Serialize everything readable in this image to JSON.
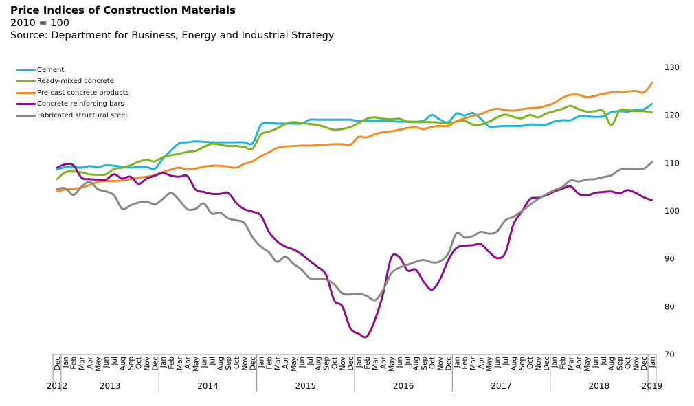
{
  "header": {
    "title": "Price Indices of Construction Materials",
    "subtitle": "2010 = 100",
    "source": "Source: Department for Business, Energy and Industrial Strategy"
  },
  "chart_data": {
    "type": "line",
    "title": "Price Indices of Construction Materials",
    "subtitle": "2010 = 100",
    "xlabel": "",
    "ylabel": "",
    "ylim": [
      70,
      130
    ],
    "yticks": [
      70,
      80,
      90,
      100,
      110,
      120,
      130
    ],
    "yaxis_side": "right",
    "grid": false,
    "legend_position": "top-left",
    "months": [
      "Dec",
      "Jan",
      "Feb",
      "Mar",
      "Apr",
      "May",
      "Jun",
      "Jul",
      "Aug",
      "Sep",
      "Oct",
      "Nov",
      "Dec",
      "Jan",
      "Feb",
      "Mar",
      "Apr",
      "May",
      "Jun",
      "Jul",
      "Aug",
      "Sep",
      "Oct",
      "Nov",
      "Dec",
      "Jan",
      "Feb",
      "Mar",
      "Apr",
      "May",
      "Jun",
      "Jul",
      "Aug",
      "Sep",
      "Oct",
      "Nov",
      "Dec",
      "Jan",
      "Feb",
      "Mar",
      "Apr",
      "May",
      "Jun",
      "Jul",
      "Aug",
      "Sep",
      "Oct",
      "Nov",
      "Dec",
      "Jan",
      "Feb",
      "Mar",
      "Apr",
      "May",
      "Jun",
      "Jul",
      "Aug",
      "Sep",
      "Oct",
      "Nov",
      "Dec",
      "Jan",
      "Feb",
      "Mar",
      "Apr",
      "May",
      "Jun",
      "Jul",
      "Aug",
      "Sep",
      "Oct",
      "Nov",
      "Dec",
      "Jan"
    ],
    "year_groups": [
      {
        "label": "2012",
        "start": 0,
        "end": 0
      },
      {
        "label": "2013",
        "start": 1,
        "end": 12
      },
      {
        "label": "2014",
        "start": 13,
        "end": 24
      },
      {
        "label": "2015",
        "start": 25,
        "end": 36
      },
      {
        "label": "2016",
        "start": 37,
        "end": 48
      },
      {
        "label": "2017",
        "start": 49,
        "end": 60
      },
      {
        "label": "2018",
        "start": 61,
        "end": 72
      },
      {
        "label": "2019",
        "start": 73,
        "end": 73
      }
    ],
    "series": [
      {
        "name": "Cement",
        "color": "#1fb3dd",
        "values": [
          108.5,
          109,
          109,
          108.9,
          109.2,
          109,
          109.4,
          109.3,
          109.1,
          108.9,
          109,
          109,
          108.7,
          110.8,
          112.5,
          114,
          114.2,
          114.4,
          114.3,
          114.2,
          114.2,
          114.2,
          114.2,
          114.2,
          114,
          117.8,
          118.2,
          118.1,
          118.1,
          118.1,
          118.1,
          118.9,
          118.9,
          118.9,
          118.9,
          118.9,
          118.9,
          118.6,
          118.7,
          118.7,
          118.7,
          118.6,
          118.5,
          118.5,
          118.5,
          118.7,
          119.9,
          118.9,
          118.4,
          120.2,
          119.8,
          120.3,
          119.1,
          117.5,
          117.5,
          117.6,
          117.6,
          117.6,
          117.9,
          117.9,
          117.9,
          118.5,
          118.8,
          118.8,
          119.6,
          119.6,
          119.5,
          119.6,
          120.5,
          120.7,
          120.6,
          121,
          121.1,
          122.2
        ]
      },
      {
        "name": "Ready-mixed concrete",
        "color": "#7ab51d",
        "values": [
          106.5,
          107.9,
          108.1,
          107.9,
          107.5,
          107.4,
          107.5,
          108.6,
          108.9,
          109.4,
          110.1,
          110.5,
          110.2,
          111.1,
          111.5,
          111.8,
          112.2,
          112.4,
          113.2,
          113.9,
          113.7,
          113.4,
          113.4,
          113.2,
          112.9,
          115.8,
          116.4,
          117.1,
          118,
          118.4,
          118.2,
          118,
          117.8,
          117.3,
          116.8,
          117,
          117.4,
          118.2,
          119.1,
          119.4,
          119.1,
          119,
          119.1,
          118.5,
          118.4,
          118.4,
          118.4,
          118.3,
          118.1,
          118.5,
          118.7,
          117.9,
          117.9,
          118.5,
          119.4,
          120,
          119.5,
          119.2,
          119.9,
          119.4,
          120.2,
          120.7,
          121.2,
          121.8,
          121.1,
          120.6,
          120.7,
          120.7,
          117.8,
          120.8,
          120.9,
          120.7,
          120.7,
          120.4
        ]
      },
      {
        "name": "Pre-cast concrete products",
        "color": "#f28c28",
        "values": [
          103.9,
          104.3,
          104.5,
          104.7,
          105.3,
          105.9,
          106.1,
          106.1,
          106.2,
          106.5,
          106.8,
          107,
          107.3,
          108,
          108.5,
          108.9,
          108.5,
          108.7,
          109.1,
          109.3,
          109.3,
          109.1,
          108.9,
          109.7,
          110.2,
          111.3,
          112.1,
          113,
          113.3,
          113.4,
          113.5,
          113.5,
          113.6,
          113.7,
          113.8,
          113.8,
          113.7,
          115.3,
          115.2,
          115.9,
          116.3,
          116.5,
          116.8,
          117.2,
          117.3,
          117,
          117.4,
          117.6,
          117.6,
          118.6,
          119.2,
          119.7,
          120.1,
          120.8,
          121.2,
          120.9,
          120.8,
          121.1,
          121.3,
          121.4,
          121.8,
          122.4,
          123.5,
          124.1,
          124.1,
          123.6,
          123.9,
          124.3,
          124.6,
          124.6,
          124.8,
          124.9,
          124.6,
          126.6
        ]
      },
      {
        "name": "Concrete reinforcing bars",
        "color": "#8e0e8a",
        "values": [
          108.9,
          109.6,
          109.4,
          106.8,
          106.5,
          106.4,
          106.4,
          107.5,
          106.6,
          107,
          105.5,
          106.6,
          107.2,
          107.8,
          107.2,
          107,
          107.1,
          104.3,
          103.8,
          103.4,
          103.4,
          103.6,
          101.5,
          100.2,
          99.7,
          98.9,
          95.5,
          93.5,
          92.4,
          91.8,
          90.8,
          89.4,
          88.1,
          86.5,
          81.2,
          79.9,
          75.3,
          74.2,
          73.6,
          77.1,
          82.5,
          90.1,
          90.2,
          87.4,
          87.6,
          85,
          83.4,
          85.6,
          89.6,
          92.1,
          92.6,
          92.7,
          92.9,
          91.3,
          90,
          91.1,
          97.1,
          99.6,
          102.3,
          102.6,
          103.1,
          103.9,
          104.5,
          105,
          103.4,
          103.1,
          103.6,
          103.8,
          103.9,
          103.5,
          104.2,
          103.6,
          102.7,
          102.1
        ]
      },
      {
        "name": "Fabricated structural steel",
        "color": "#8c8782",
        "values": [
          104.4,
          104.6,
          103.2,
          104.9,
          105.9,
          104.4,
          103.9,
          103.1,
          100.3,
          101,
          101.6,
          101.8,
          101.2,
          102.4,
          103.6,
          102.1,
          100.2,
          100.3,
          101.4,
          99.3,
          99.5,
          98.3,
          97.9,
          97.3,
          94.3,
          92.4,
          91.2,
          89.2,
          90.3,
          88.8,
          87.6,
          85.8,
          85.6,
          85.5,
          84.5,
          82.6,
          82.4,
          82.5,
          82.1,
          81.2,
          83.3,
          86.8,
          88,
          88.6,
          89.2,
          89.6,
          89.1,
          89.3,
          91,
          95.2,
          94.3,
          94.6,
          95.5,
          95.1,
          95.6,
          97.9,
          98.6,
          99.8,
          101.1,
          102.3,
          103.3,
          104.2,
          104.9,
          106.2,
          106,
          106.4,
          106.5,
          106.9,
          107.3,
          108.4,
          108.7,
          108.6,
          108.7,
          110.1
        ]
      }
    ]
  }
}
